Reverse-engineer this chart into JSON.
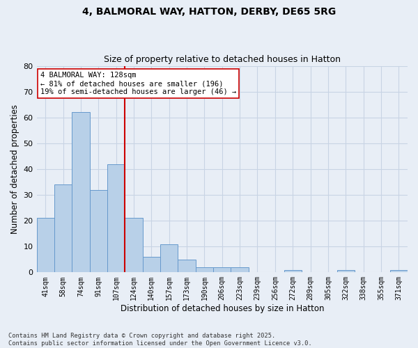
{
  "title": "4, BALMORAL WAY, HATTON, DERBY, DE65 5RG",
  "subtitle": "Size of property relative to detached houses in Hatton",
  "xlabel": "Distribution of detached houses by size in Hatton",
  "ylabel": "Number of detached properties",
  "categories": [
    "41sqm",
    "58sqm",
    "74sqm",
    "91sqm",
    "107sqm",
    "124sqm",
    "140sqm",
    "157sqm",
    "173sqm",
    "190sqm",
    "206sqm",
    "223sqm",
    "239sqm",
    "256sqm",
    "272sqm",
    "289sqm",
    "305sqm",
    "322sqm",
    "338sqm",
    "355sqm",
    "371sqm"
  ],
  "values": [
    21,
    34,
    62,
    32,
    42,
    21,
    6,
    11,
    5,
    2,
    2,
    2,
    0,
    0,
    1,
    0,
    0,
    1,
    0,
    0,
    1
  ],
  "bar_color": "#b8d0e8",
  "bar_edge_color": "#6699cc",
  "grid_color": "#c8d4e4",
  "background_color": "#e8eef6",
  "vline_index": 5,
  "vline_color": "#cc0000",
  "annotation_text": "4 BALMORAL WAY: 128sqm\n← 81% of detached houses are smaller (196)\n19% of semi-detached houses are larger (46) →",
  "annotation_box_color": "#ffffff",
  "annotation_box_edge": "#cc0000",
  "ylim": [
    0,
    80
  ],
  "yticks": [
    0,
    10,
    20,
    30,
    40,
    50,
    60,
    70,
    80
  ],
  "footer": "Contains HM Land Registry data © Crown copyright and database right 2025.\nContains public sector information licensed under the Open Government Licence v3.0."
}
